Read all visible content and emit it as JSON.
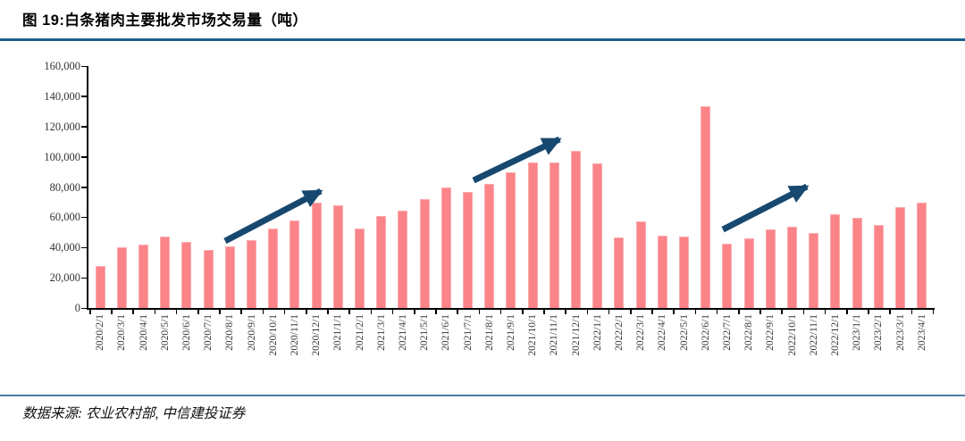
{
  "header": {
    "title": "图 19:白条猪肉主要批发市场交易量（吨）"
  },
  "footer": {
    "source_text": "数据来源: 农业农村部, 中信建投证券"
  },
  "colors": {
    "bar_fill": "#fb8489",
    "bar_edge": "#fcabae",
    "arrow": "#17486f",
    "title_rule": "#1d5e8c",
    "footer_rule": "#4d80a6",
    "axis": "#000000"
  },
  "chart_data": {
    "type": "bar",
    "title": "白条猪肉主要批发市场交易量（吨）",
    "categories": [
      "2020/2/1",
      "2020/3/1",
      "2020/4/1",
      "2020/5/1",
      "2020/6/1",
      "2020/7/1",
      "2020/8/1",
      "2020/9/1",
      "2020/10/1",
      "2020/11/1",
      "2020/12/1",
      "2021/1/1",
      "2021/2/1",
      "2021/3/1",
      "2021/4/1",
      "2021/5/1",
      "2021/6/1",
      "2021/7/1",
      "2021/8/1",
      "2021/9/1",
      "2021/10/1",
      "2021/11/1",
      "2021/12/1",
      "2022/1/1",
      "2022/2/1",
      "2022/3/1",
      "2022/4/1",
      "2022/5/1",
      "2022/6/1",
      "2022/7/1",
      "2022/8/1",
      "2022/9/1",
      "2022/10/1",
      "2022/11/1",
      "2022/12/1",
      "2023/1/1",
      "2023/2/1",
      "2023/3/1",
      "2023/4/1"
    ],
    "values": [
      27500,
      40000,
      42000,
      47000,
      43500,
      38500,
      40500,
      45000,
      52500,
      58000,
      69500,
      68000,
      52500,
      61000,
      64500,
      72000,
      79500,
      77000,
      82000,
      90000,
      96000,
      96500,
      104000,
      95500,
      46500,
      57000,
      48000,
      47000,
      133500,
      42500,
      46000,
      52000,
      53500,
      49500,
      62000,
      59500,
      55000,
      67000,
      69500
    ],
    "xlabel": "",
    "ylabel": "",
    "ylim": [
      0,
      160000
    ],
    "ytick_step": 20000,
    "ytick_labels": [
      "0",
      "20,000",
      "40,000",
      "60,000",
      "80,000",
      "100,000",
      "120,000",
      "140,000",
      "160,000"
    ],
    "grid": false,
    "legend": null,
    "annotations": {
      "arrows": [
        {
          "from": {
            "index": 5.78,
            "value": 44300
          },
          "to": {
            "index": 10.2,
            "value": 77300
          }
        },
        {
          "from": {
            "index": 17.27,
            "value": 84400
          },
          "to": {
            "index": 21.24,
            "value": 111600
          }
        },
        {
          "from": {
            "index": 28.8,
            "value": 51900
          },
          "to": {
            "index": 32.68,
            "value": 80300
          }
        }
      ]
    }
  }
}
